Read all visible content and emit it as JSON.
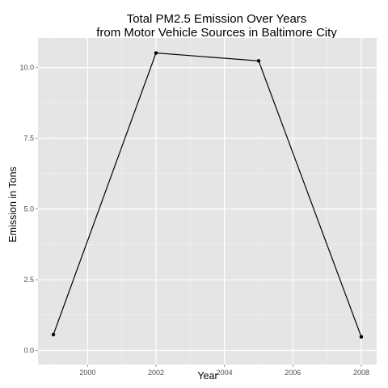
{
  "chart_data": {
    "type": "line",
    "title": "Total PM2.5 Emission Over Years",
    "subtitle": "from Motor Vehicle Sources in Baltimore City",
    "xlabel": "Year",
    "ylabel": "Emission in Tons",
    "x": [
      1999,
      2002,
      2005,
      2008
    ],
    "series": [
      {
        "name": "",
        "values": [
          0.56,
          10.52,
          10.24,
          0.48
        ]
      }
    ],
    "xlim": [
      1998.55,
      2008.45
    ],
    "ylim": [
      -0.5,
      11.05
    ],
    "x_ticks": [
      2000,
      2002,
      2004,
      2006,
      2008
    ],
    "x_tick_labels": [
      "2000",
      "2002",
      "2004",
      "2006",
      "2008"
    ],
    "y_ticks": [
      0,
      2.5,
      5,
      7.5,
      10
    ],
    "y_tick_labels": [
      "0.0",
      "2.5",
      "5.0",
      "7.5",
      "10.0"
    ],
    "grid": true,
    "legend": "none",
    "colors": {
      "panel": "#e5e5e5",
      "grid_major": "#ffffff",
      "grid_minor": "#f2f2f2",
      "line": "#000000",
      "tick_text": "#4d4d4d"
    }
  }
}
